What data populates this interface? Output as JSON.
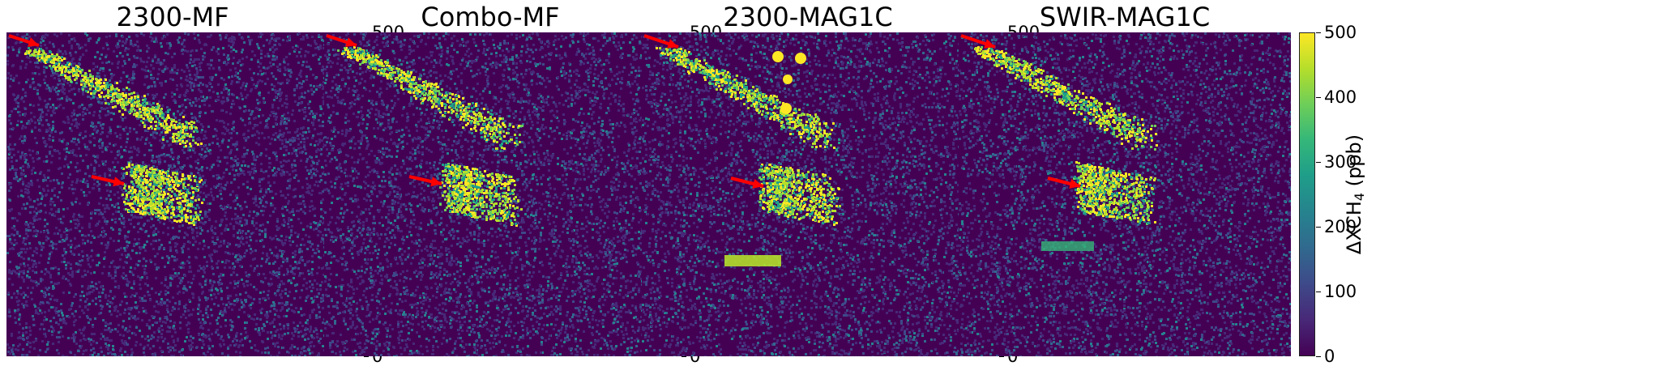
{
  "panels": [
    {
      "title": "2300-MF"
    },
    {
      "title": "Combo-MF"
    },
    {
      "title": "2300-MAG1C"
    },
    {
      "title": "SWIR-MAG1C"
    }
  ],
  "colorbar": {
    "label": "ΔXCH",
    "label_sub": "4",
    "label_unit": " (ppb)",
    "ticks": [
      "0",
      "100",
      "200",
      "300",
      "400",
      "500"
    ],
    "range": [
      0,
      500
    ],
    "colormap": "viridis"
  },
  "annotations": {
    "arrow_color": "#ff0000"
  }
}
